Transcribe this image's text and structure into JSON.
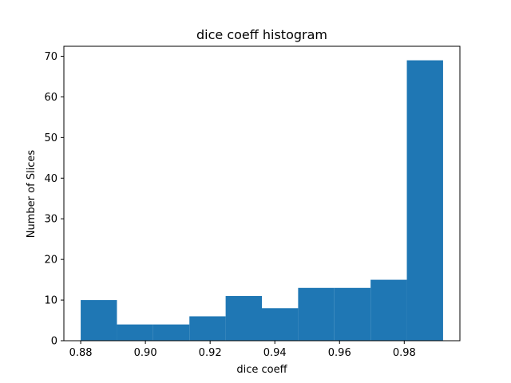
{
  "chart_data": {
    "type": "bar",
    "subtype": "histogram",
    "title": "dice coeff histogram",
    "xlabel": "dice coeff",
    "ylabel": "Number of Slices",
    "bin_edges": [
      0.88,
      0.8912,
      0.9024,
      0.9136,
      0.9248,
      0.936,
      0.9472,
      0.9584,
      0.9696,
      0.9808,
      0.992
    ],
    "values": [
      10,
      4,
      4,
      6,
      11,
      8,
      13,
      13,
      15,
      69
    ],
    "xlim": [
      0.8748,
      0.9972
    ],
    "ylim": [
      0,
      72.45
    ],
    "xticks": [
      0.88,
      0.9,
      0.92,
      0.94,
      0.96,
      0.98
    ],
    "xtick_labels": [
      "0.88",
      "0.90",
      "0.92",
      "0.94",
      "0.96",
      "0.98"
    ],
    "yticks": [
      0,
      10,
      20,
      30,
      40,
      50,
      60,
      70
    ],
    "ytick_labels": [
      "0",
      "10",
      "20",
      "30",
      "40",
      "50",
      "60",
      "70"
    ],
    "grid": false,
    "legend": false,
    "colors": {
      "bar": "#1f77b4",
      "axis": "#000000",
      "background": "#ffffff"
    }
  }
}
